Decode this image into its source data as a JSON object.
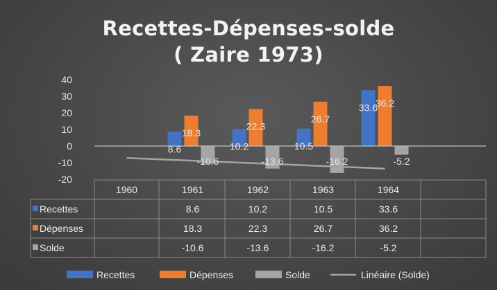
{
  "chart_data": {
    "type": "bar",
    "title": [
      "Recettes-Dépenses-solde",
      "( Zaire 1973)"
    ],
    "categories": [
      "1960",
      "1961",
      "1962",
      "1963",
      "1964"
    ],
    "series": [
      {
        "name": "Recettes",
        "color": "#4472c4",
        "values": [
          null,
          8.6,
          10.2,
          10.5,
          33.6
        ],
        "labels": [
          "",
          "8.6",
          "10.2",
          "10.5",
          "33.6"
        ]
      },
      {
        "name": "Dépenses",
        "color": "#ed7d31",
        "values": [
          null,
          18.3,
          22.3,
          26.7,
          36.2
        ],
        "labels": [
          "",
          "18.3",
          "22.3",
          "26.7",
          "36.2"
        ]
      },
      {
        "name": "Solde",
        "color": "#a5a5a5",
        "values": [
          null,
          -10.6,
          -13.6,
          -16.2,
          -5.2
        ],
        "labels": [
          "",
          "-10.6",
          "-13.6",
          "-16.2",
          "-5.2"
        ]
      }
    ],
    "trendline": {
      "name": "Linéaire (Solde)",
      "of_series": "Solde",
      "type": "linear",
      "color": "#a5a5a5"
    },
    "y_ticks": [
      "40",
      "30",
      "20",
      "10",
      "0",
      "-10",
      "-20"
    ],
    "ylim": [
      -20,
      40
    ],
    "xlabel": "",
    "ylabel": "",
    "legend": "bottom",
    "data_table": true,
    "grid": false
  }
}
